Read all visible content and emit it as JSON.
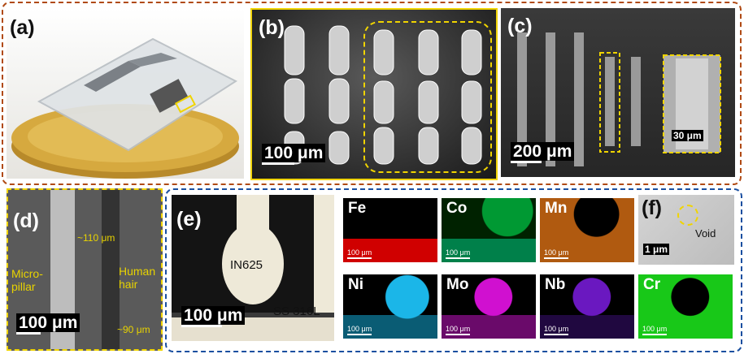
{
  "panels": {
    "a": {
      "label": "(a)"
    },
    "b": {
      "label": "(b)",
      "scale": "100 μm"
    },
    "c": {
      "label": "(c)",
      "scale": "200 μm",
      "inset_scale": "30 μm"
    },
    "d": {
      "label": "(d)",
      "scale": "100 μm",
      "dim_top": "~110 μm",
      "dim_bottom": "~90 μm",
      "micropillar": "Micro-\npillar",
      "hair": "Human\nhair"
    },
    "e": {
      "label": "(e)",
      "scale": "100 μm",
      "in625": "IN625",
      "ss316l": "SS 316L"
    },
    "f": {
      "label": "(f)",
      "scale": "1 μm",
      "void": "Void"
    }
  },
  "eds_maps": [
    {
      "element": "Fe",
      "scale": "100 μm",
      "color": "#e00000"
    },
    {
      "element": "Co",
      "scale": "100 μm",
      "color": "#00a060"
    },
    {
      "element": "Mn",
      "scale": "100 μm",
      "color": "#c86a10"
    },
    {
      "element": "Ni",
      "scale": "100 μm",
      "color": "#10b0e0"
    },
    {
      "element": "Mo",
      "scale": "100 μm",
      "color": "#c010c0"
    },
    {
      "element": "Nb",
      "scale": "100 μm",
      "color": "#7018c8"
    },
    {
      "element": "Cr",
      "scale": "100 μm",
      "color": "#10d010"
    }
  ],
  "colors": {
    "frame_brown": "#b04a14",
    "frame_blue": "#1a4fa0",
    "highlight_yellow": "#f0d400"
  }
}
